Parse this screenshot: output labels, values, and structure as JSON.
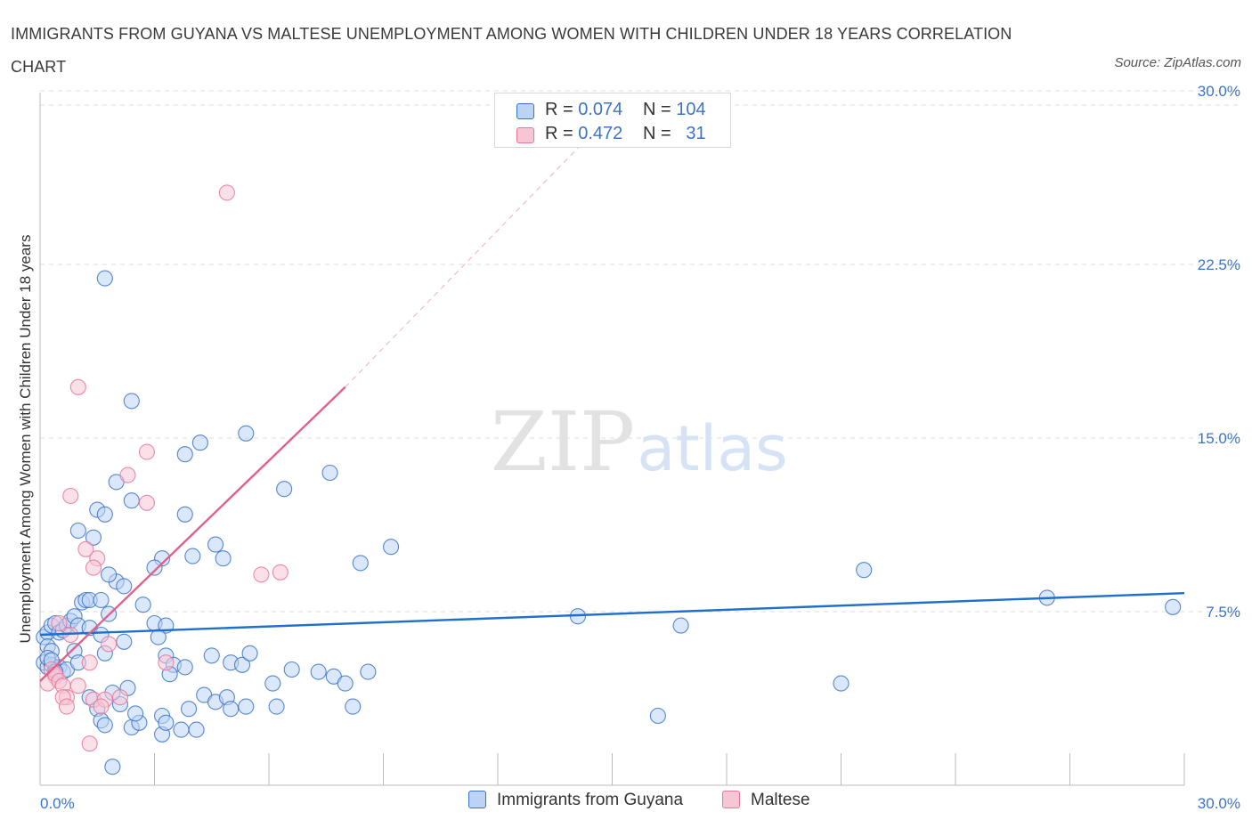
{
  "title": "IMMIGRANTS FROM GUYANA VS MALTESE UNEMPLOYMENT AMONG WOMEN WITH CHILDREN UNDER 18 YEARS CORRELATION CHART",
  "source": "Source: ZipAtlas.com",
  "colors": {
    "blue": "#3b74c6",
    "blue_fill": "#bdd3f5",
    "blue_line": "#1f6fcc",
    "pink": "#e8779a",
    "pink_fill": "#f7c6d5",
    "pink_line": "#e0608a",
    "grid": "#dddddd",
    "axis": "#bbbbbb"
  },
  "legend_top": {
    "series": [
      {
        "r_label": "R =",
        "r_value": "0.074",
        "n_label": "N =",
        "n_value": "104"
      },
      {
        "r_label": "R =",
        "r_value": "0.472",
        "n_label": "N =",
        "n_value": "31"
      }
    ]
  },
  "legend_bottom": [
    "Immigrants from Guyana",
    "Maltese"
  ],
  "watermark": {
    "zip": "ZIP",
    "atlas": "atlas"
  },
  "chart_data": {
    "type": "scatter",
    "title": "IMMIGRANTS FROM GUYANA VS MALTESE UNEMPLOYMENT AMONG WOMEN WITH CHILDREN UNDER 18 YEARS CORRELATION CHART",
    "xlabel": "",
    "ylabel": "Unemployment Among Women with Children Under 18 years",
    "xlim": [
      0,
      30
    ],
    "ylim": [
      0,
      30
    ],
    "x_tick_labels": [
      "0.0%",
      "30.0%"
    ],
    "y_ticks": [
      7.5,
      15.0,
      22.5,
      30.0
    ],
    "y_tick_labels": [
      "7.5%",
      "15.0%",
      "22.5%",
      "30.0%"
    ],
    "legend": [
      "Immigrants from Guyana",
      "Maltese"
    ],
    "series": [
      {
        "name": "Immigrants from Guyana",
        "R": 0.074,
        "N": 104,
        "trend": {
          "x": [
            0.0,
            30.0
          ],
          "y": [
            6.5,
            8.3
          ],
          "dashed_extension": false
        },
        "points": [
          [
            1.7,
            21.9
          ],
          [
            2.4,
            16.6
          ],
          [
            5.4,
            15.2
          ],
          [
            8.4,
            9.6
          ],
          [
            21.6,
            9.3
          ],
          [
            4.2,
            14.8
          ],
          [
            3.8,
            14.3
          ],
          [
            6.4,
            12.8
          ],
          [
            2.0,
            13.1
          ],
          [
            2.4,
            12.3
          ],
          [
            7.6,
            13.5
          ],
          [
            1.5,
            11.9
          ],
          [
            1.7,
            11.7
          ],
          [
            3.8,
            11.7
          ],
          [
            1.0,
            11.0
          ],
          [
            1.4,
            10.7
          ],
          [
            4.6,
            10.4
          ],
          [
            9.2,
            10.3
          ],
          [
            3.2,
            9.8
          ],
          [
            4.0,
            9.9
          ],
          [
            4.8,
            9.8
          ],
          [
            2.0,
            8.8
          ],
          [
            1.8,
            9.1
          ],
          [
            2.2,
            8.6
          ],
          [
            3.0,
            9.4
          ],
          [
            1.1,
            7.9
          ],
          [
            1.2,
            8.0
          ],
          [
            1.3,
            8.0
          ],
          [
            1.6,
            8.0
          ],
          [
            1.8,
            7.4
          ],
          [
            2.7,
            7.8
          ],
          [
            3.0,
            7.0
          ],
          [
            3.3,
            6.9
          ],
          [
            3.1,
            6.4
          ],
          [
            3.3,
            5.6
          ],
          [
            3.5,
            5.2
          ],
          [
            3.4,
            4.8
          ],
          [
            3.8,
            5.1
          ],
          [
            4.5,
            5.6
          ],
          [
            5.0,
            5.3
          ],
          [
            5.3,
            5.2
          ],
          [
            5.5,
            5.7
          ],
          [
            6.1,
            4.4
          ],
          [
            6.6,
            5.0
          ],
          [
            7.3,
            4.9
          ],
          [
            7.7,
            4.7
          ],
          [
            8.6,
            4.9
          ],
          [
            8.0,
            4.4
          ],
          [
            4.3,
            3.9
          ],
          [
            4.6,
            3.6
          ],
          [
            4.9,
            3.8
          ],
          [
            5.0,
            3.3
          ],
          [
            5.4,
            3.4
          ],
          [
            6.2,
            3.4
          ],
          [
            8.2,
            3.4
          ],
          [
            3.9,
            3.3
          ],
          [
            3.2,
            3.0
          ],
          [
            3.7,
            2.4
          ],
          [
            4.1,
            2.4
          ],
          [
            3.2,
            2.2
          ],
          [
            3.3,
            2.7
          ],
          [
            2.4,
            2.5
          ],
          [
            2.6,
            2.7
          ],
          [
            2.3,
            4.2
          ],
          [
            2.5,
            3.1
          ],
          [
            2.1,
            3.5
          ],
          [
            1.9,
            4.0
          ],
          [
            1.5,
            3.3
          ],
          [
            1.3,
            3.8
          ],
          [
            1.6,
            2.8
          ],
          [
            1.7,
            2.6
          ],
          [
            1.9,
            0.8
          ],
          [
            0.1,
            6.4
          ],
          [
            0.2,
            6.6
          ],
          [
            0.3,
            6.9
          ],
          [
            0.4,
            7.0
          ],
          [
            0.5,
            6.6
          ],
          [
            0.6,
            6.7
          ],
          [
            0.7,
            6.9
          ],
          [
            0.8,
            7.1
          ],
          [
            0.9,
            7.3
          ],
          [
            1.0,
            6.9
          ],
          [
            0.2,
            6.0
          ],
          [
            0.3,
            5.8
          ],
          [
            0.1,
            5.3
          ],
          [
            0.2,
            5.1
          ],
          [
            0.3,
            5.2
          ],
          [
            0.4,
            5.0
          ],
          [
            0.5,
            5.1
          ],
          [
            0.6,
            4.9
          ],
          [
            0.7,
            5.0
          ],
          [
            0.9,
            5.8
          ],
          [
            1.0,
            5.3
          ],
          [
            0.2,
            5.5
          ],
          [
            0.3,
            5.4
          ],
          [
            0.4,
            4.9
          ],
          [
            1.3,
            6.8
          ],
          [
            1.6,
            6.5
          ],
          [
            2.2,
            6.2
          ],
          [
            1.7,
            5.7
          ],
          [
            14.1,
            7.3
          ],
          [
            16.2,
            3.0
          ],
          [
            26.4,
            8.1
          ],
          [
            29.7,
            7.7
          ],
          [
            16.8,
            6.9
          ],
          [
            21.0,
            4.4
          ]
        ]
      },
      {
        "name": "Maltese",
        "R": 0.472,
        "N": 31,
        "trend": {
          "x": [
            0.0,
            8.0
          ],
          "y": [
            4.5,
            17.2
          ],
          "dashed_extension_to": [
            15.5,
            29.9
          ]
        },
        "points": [
          [
            4.9,
            25.6
          ],
          [
            1.0,
            17.2
          ],
          [
            2.8,
            14.4
          ],
          [
            2.3,
            13.4
          ],
          [
            0.8,
            12.5
          ],
          [
            2.8,
            12.2
          ],
          [
            1.2,
            10.2
          ],
          [
            1.5,
            9.8
          ],
          [
            1.4,
            9.4
          ],
          [
            5.8,
            9.1
          ],
          [
            6.3,
            9.2
          ],
          [
            1.8,
            6.1
          ],
          [
            0.5,
            7.0
          ],
          [
            0.8,
            6.5
          ],
          [
            3.3,
            5.3
          ],
          [
            1.3,
            5.3
          ],
          [
            0.3,
            5.0
          ],
          [
            0.4,
            4.7
          ],
          [
            0.2,
            4.4
          ],
          [
            0.4,
            4.8
          ],
          [
            0.5,
            4.5
          ],
          [
            0.6,
            4.3
          ],
          [
            0.7,
            3.8
          ],
          [
            1.0,
            4.3
          ],
          [
            0.6,
            3.8
          ],
          [
            0.7,
            3.4
          ],
          [
            1.4,
            3.7
          ],
          [
            2.1,
            3.8
          ],
          [
            1.7,
            3.7
          ],
          [
            1.6,
            3.4
          ],
          [
            1.3,
            1.8
          ]
        ]
      }
    ]
  }
}
